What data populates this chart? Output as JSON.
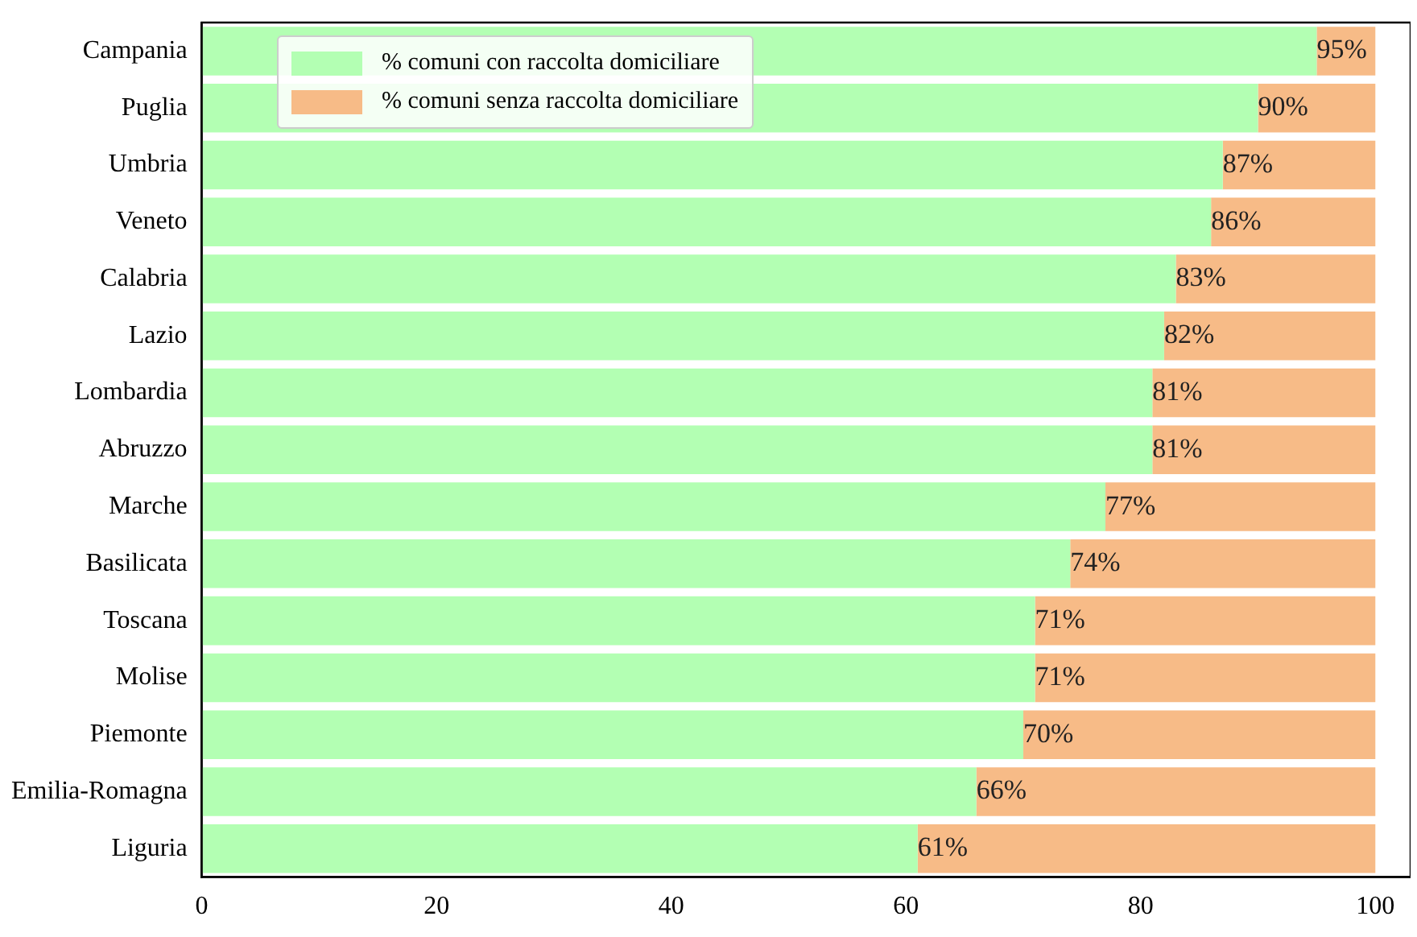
{
  "chart_data": {
    "type": "bar",
    "orientation": "horizontal",
    "stacked": true,
    "categories": [
      "Campania",
      "Puglia",
      "Umbria",
      "Veneto",
      "Calabria",
      "Lazio",
      "Lombardia",
      "Abruzzo",
      "Marche",
      "Basilicata",
      "Toscana",
      "Molise",
      "Piemonte",
      "Emilia-Romagna",
      "Liguria"
    ],
    "series": [
      {
        "name": "% comuni con raccolta domiciliare",
        "color": "#b3ffb3",
        "values": [
          95,
          90,
          87,
          86,
          83,
          82,
          81,
          81,
          77,
          74,
          71,
          71,
          70,
          66,
          61
        ],
        "value_labels": [
          "95%",
          "90%",
          "87%",
          "86%",
          "83%",
          "82%",
          "81%",
          "81%",
          "77%",
          "74%",
          "71%",
          "71%",
          "70%",
          "66%",
          "61%"
        ]
      },
      {
        "name": "% comuni senza raccolta domiciliare",
        "color": "#f7bb87",
        "values": [
          5,
          10,
          13,
          14,
          17,
          18,
          19,
          19,
          23,
          26,
          29,
          29,
          30,
          34,
          39
        ]
      }
    ],
    "xlim": [
      0,
      103
    ],
    "xticks": [
      0,
      20,
      40,
      60,
      80,
      100
    ],
    "grid": false,
    "legend": "top left"
  }
}
